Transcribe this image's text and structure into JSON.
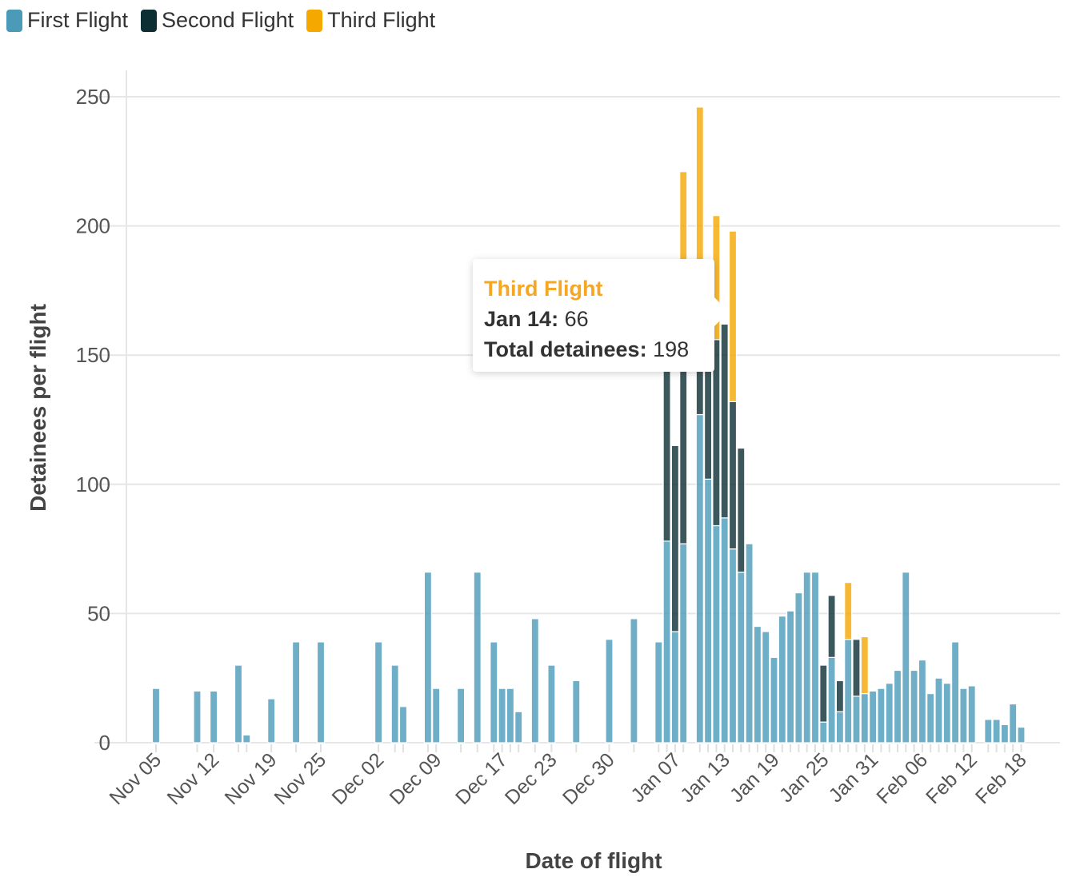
{
  "chart_data": {
    "type": "bar",
    "stacked": true,
    "xlabel": "Date of flight",
    "ylabel": "Detainees per flight",
    "ylim": [
      0,
      260
    ],
    "yticks": [
      0,
      50,
      100,
      150,
      200,
      250
    ],
    "xlim": [
      "Nov 05",
      "Feb 18"
    ],
    "xtick_labels": [
      "Nov 05",
      "Nov 12",
      "Nov 19",
      "Nov 25",
      "Dec 02",
      "Dec 09",
      "Dec 17",
      "Dec 23",
      "Dec 30",
      "Jan 07",
      "Jan 13",
      "Jan 19",
      "Jan 25",
      "Jan 31",
      "Feb 06",
      "Feb 12",
      "Feb 18"
    ],
    "legend": {
      "placement": "top-left"
    },
    "grid": true,
    "series": [
      {
        "name": "First Flight",
        "color": "#4a9ab8"
      },
      {
        "name": "Second Flight",
        "color": "#0d2e33"
      },
      {
        "name": "Third Flight",
        "color": "#f5a800"
      }
    ],
    "points": [
      {
        "date": "Nov 05",
        "values": [
          21,
          0,
          0
        ]
      },
      {
        "date": "Nov 10",
        "values": [
          20,
          0,
          0
        ]
      },
      {
        "date": "Nov 12",
        "values": [
          20,
          0,
          0
        ]
      },
      {
        "date": "Nov 15",
        "values": [
          30,
          0,
          0
        ]
      },
      {
        "date": "Nov 16",
        "values": [
          3,
          0,
          0
        ]
      },
      {
        "date": "Nov 19",
        "values": [
          17,
          0,
          0
        ]
      },
      {
        "date": "Nov 22",
        "values": [
          39,
          0,
          0
        ]
      },
      {
        "date": "Nov 25",
        "values": [
          39,
          0,
          0
        ]
      },
      {
        "date": "Dec 02",
        "values": [
          39,
          0,
          0
        ]
      },
      {
        "date": "Dec 04",
        "values": [
          30,
          0,
          0
        ]
      },
      {
        "date": "Dec 05",
        "values": [
          14,
          0,
          0
        ]
      },
      {
        "date": "Dec 08",
        "values": [
          66,
          0,
          0
        ]
      },
      {
        "date": "Dec 09",
        "values": [
          21,
          0,
          0
        ]
      },
      {
        "date": "Dec 12",
        "values": [
          21,
          0,
          0
        ]
      },
      {
        "date": "Dec 14",
        "values": [
          66,
          0,
          0
        ]
      },
      {
        "date": "Dec 16",
        "values": [
          39,
          0,
          0
        ]
      },
      {
        "date": "Dec 17",
        "values": [
          21,
          0,
          0
        ]
      },
      {
        "date": "Dec 18",
        "values": [
          21,
          0,
          0
        ]
      },
      {
        "date": "Dec 19",
        "values": [
          12,
          0,
          0
        ]
      },
      {
        "date": "Dec 21",
        "values": [
          48,
          0,
          0
        ]
      },
      {
        "date": "Dec 23",
        "values": [
          30,
          0,
          0
        ]
      },
      {
        "date": "Dec 26",
        "values": [
          24,
          0,
          0
        ]
      },
      {
        "date": "Dec 30",
        "values": [
          40,
          0,
          0
        ]
      },
      {
        "date": "Jan 02",
        "values": [
          48,
          0,
          0
        ]
      },
      {
        "date": "Jan 05",
        "values": [
          39,
          0,
          0
        ]
      },
      {
        "date": "Jan 06",
        "values": [
          78,
          72,
          0
        ]
      },
      {
        "date": "Jan 07",
        "values": [
          43,
          72,
          0
        ]
      },
      {
        "date": "Jan 08",
        "values": [
          77,
          80,
          64
        ]
      },
      {
        "date": "Jan 10",
        "values": [
          127,
          35,
          84
        ]
      },
      {
        "date": "Jan 11",
        "values": [
          102,
          53,
          0
        ]
      },
      {
        "date": "Jan 12",
        "values": [
          84,
          72,
          48
        ]
      },
      {
        "date": "Jan 13",
        "values": [
          87,
          75,
          0
        ]
      },
      {
        "date": "Jan 14",
        "values": [
          75,
          57,
          66
        ]
      },
      {
        "date": "Jan 15",
        "values": [
          66,
          48,
          0
        ]
      },
      {
        "date": "Jan 16",
        "values": [
          77,
          0,
          0
        ]
      },
      {
        "date": "Jan 17",
        "values": [
          45,
          0,
          0
        ]
      },
      {
        "date": "Jan 18",
        "values": [
          43,
          0,
          0
        ]
      },
      {
        "date": "Jan 19",
        "values": [
          33,
          0,
          0
        ]
      },
      {
        "date": "Jan 20",
        "values": [
          49,
          0,
          0
        ]
      },
      {
        "date": "Jan 21",
        "values": [
          51,
          0,
          0
        ]
      },
      {
        "date": "Jan 22",
        "values": [
          58,
          0,
          0
        ]
      },
      {
        "date": "Jan 23",
        "values": [
          66,
          0,
          0
        ]
      },
      {
        "date": "Jan 24",
        "values": [
          66,
          0,
          0
        ]
      },
      {
        "date": "Jan 25",
        "values": [
          8,
          22,
          0
        ]
      },
      {
        "date": "Jan 26",
        "values": [
          33,
          24,
          0
        ]
      },
      {
        "date": "Jan 27",
        "values": [
          12,
          12,
          0
        ]
      },
      {
        "date": "Jan 28",
        "values": [
          40,
          0,
          22
        ]
      },
      {
        "date": "Jan 29",
        "values": [
          18,
          22,
          0
        ]
      },
      {
        "date": "Jan 30",
        "values": [
          19,
          0,
          22
        ]
      },
      {
        "date": "Jan 31",
        "values": [
          20,
          0,
          0
        ]
      },
      {
        "date": "Feb 01",
        "values": [
          21,
          0,
          0
        ]
      },
      {
        "date": "Feb 02",
        "values": [
          23,
          0,
          0
        ]
      },
      {
        "date": "Feb 03",
        "values": [
          28,
          0,
          0
        ]
      },
      {
        "date": "Feb 04",
        "values": [
          66,
          0,
          0
        ]
      },
      {
        "date": "Feb 05",
        "values": [
          28,
          0,
          0
        ]
      },
      {
        "date": "Feb 06",
        "values": [
          32,
          0,
          0
        ]
      },
      {
        "date": "Feb 07",
        "values": [
          19,
          0,
          0
        ]
      },
      {
        "date": "Feb 08",
        "values": [
          25,
          0,
          0
        ]
      },
      {
        "date": "Feb 09",
        "values": [
          23,
          0,
          0
        ]
      },
      {
        "date": "Feb 10",
        "values": [
          39,
          0,
          0
        ]
      },
      {
        "date": "Feb 11",
        "values": [
          21,
          0,
          0
        ]
      },
      {
        "date": "Feb 12",
        "values": [
          22,
          0,
          0
        ]
      },
      {
        "date": "Feb 14",
        "values": [
          9,
          0,
          0
        ]
      },
      {
        "date": "Feb 15",
        "values": [
          9,
          0,
          0
        ]
      },
      {
        "date": "Feb 16",
        "values": [
          7,
          0,
          0
        ]
      },
      {
        "date": "Feb 17",
        "values": [
          15,
          0,
          0
        ]
      },
      {
        "date": "Feb 18",
        "values": [
          6,
          0,
          0
        ]
      }
    ]
  },
  "tooltip": {
    "series": "Third Flight",
    "date_label": "Jan 14",
    "value": "66",
    "total_label": "Total detainees",
    "total": "198"
  }
}
